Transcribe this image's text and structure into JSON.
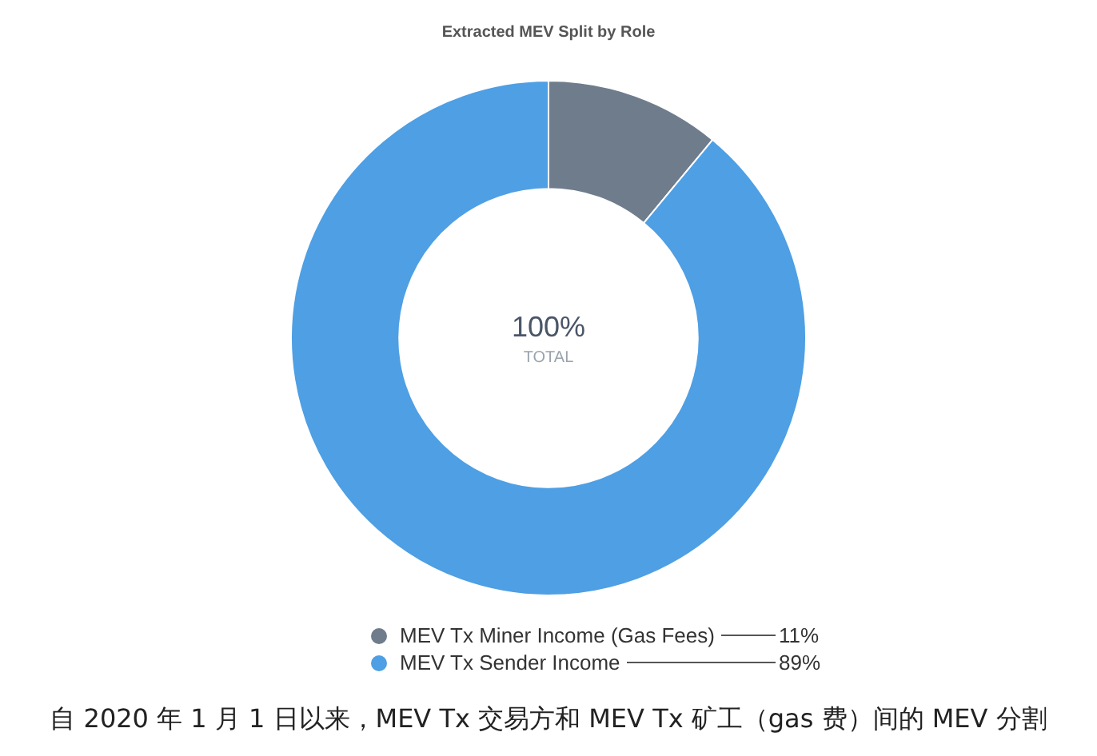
{
  "chart_data": {
    "type": "donut",
    "title": "Extracted MEV Split by Role",
    "categories": [
      "MEV Tx Miner Income (Gas Fees)",
      "MEV Tx Sender Income"
    ],
    "values": [
      11,
      89
    ],
    "colors": [
      "#6f7c8c",
      "#4e9fe4"
    ],
    "value_labels": [
      "11%",
      "89%"
    ],
    "legend": "bottom",
    "annotations": [
      "100%",
      "TOTAL",
      "自 2020 年 1 月 1 日以来，MEV Tx 交易方和 MEV Tx 矿工（gas 费）间的 MEV 分割"
    ]
  }
}
